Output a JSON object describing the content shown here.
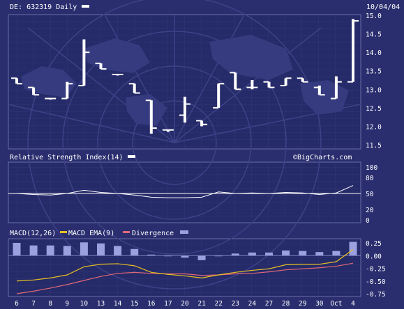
{
  "chart_data": [
    {
      "type": "ohlc",
      "title": "DE: 632319 Daily",
      "date": "10/04/04",
      "xlabels": [
        "6",
        "7",
        "8",
        "9",
        "10",
        "13",
        "14",
        "15",
        "16",
        "17",
        "20",
        "21",
        "22",
        "23",
        "24",
        "27",
        "28",
        "29",
        "30",
        "Oct",
        "4"
      ],
      "ylim": [
        11.5,
        15.0
      ],
      "yticks": [
        "15.0",
        "14.5",
        "14.0",
        "13.5",
        "13.0",
        "12.5",
        "12.0",
        "11.5"
      ],
      "bars": [
        {
          "open": 13.3,
          "high": 13.3,
          "low": 13.15,
          "close": 13.15
        },
        {
          "open": 13.05,
          "high": 13.05,
          "low": 12.85,
          "close": 12.85
        },
        {
          "open": 12.75,
          "high": 12.75,
          "low": 12.75,
          "close": 12.75
        },
        {
          "open": 12.75,
          "high": 13.2,
          "low": 12.75,
          "close": 13.15
        },
        {
          "open": 13.1,
          "high": 14.35,
          "low": 13.1,
          "close": 14.0
        },
        {
          "open": 13.7,
          "high": 13.7,
          "low": 13.55,
          "close": 13.55
        },
        {
          "open": 13.4,
          "high": 13.4,
          "low": 13.4,
          "close": 13.4
        },
        {
          "open": 13.15,
          "high": 13.15,
          "low": 12.9,
          "close": 12.9
        },
        {
          "open": 12.7,
          "high": 12.7,
          "low": 11.8,
          "close": 11.95
        },
        {
          "open": 11.9,
          "high": 11.9,
          "low": 11.85,
          "close": 11.9
        },
        {
          "open": 12.3,
          "high": 12.8,
          "low": 12.1,
          "close": 12.6
        },
        {
          "open": 12.15,
          "high": 12.15,
          "low": 12.0,
          "close": 12.05
        },
        {
          "open": 12.5,
          "high": 13.15,
          "low": 12.5,
          "close": 13.15
        },
        {
          "open": 13.45,
          "high": 13.45,
          "low": 13.0,
          "close": 13.0
        },
        {
          "open": 13.05,
          "high": 13.25,
          "low": 13.0,
          "close": 13.05
        },
        {
          "open": 13.2,
          "high": 13.2,
          "low": 13.05,
          "close": 13.05
        },
        {
          "open": 13.1,
          "high": 13.3,
          "low": 13.1,
          "close": 13.3
        },
        {
          "open": 13.3,
          "high": 13.3,
          "low": 13.2,
          "close": 13.2
        },
        {
          "open": 13.05,
          "high": 13.1,
          "low": 12.85,
          "close": 12.85
        },
        {
          "open": 12.75,
          "high": 13.35,
          "low": 12.75,
          "close": 13.2
        },
        {
          "open": 13.2,
          "high": 14.9,
          "low": 13.2,
          "close": 14.85
        }
      ]
    },
    {
      "type": "line",
      "title": "Relative Strength Index(14)",
      "watermark": "©BigCharts.com",
      "ylim": [
        0,
        100
      ],
      "yticks": [
        "100",
        "80",
        "50",
        "20",
        "0"
      ],
      "reference_line": 50,
      "series": [
        {
          "values": [
            50,
            48,
            47,
            50,
            56,
            52,
            50,
            47,
            43,
            42,
            42,
            43,
            53,
            50,
            51,
            50,
            52,
            51,
            48,
            51,
            65
          ]
        }
      ]
    },
    {
      "type": "line",
      "title": "MACD(12,26)",
      "legend": [
        "MACD(12,26)",
        "MACD EMA(9)",
        "Divergence"
      ],
      "colors": {
        "macd": "#e8c020",
        "ema": "#e06878",
        "divergence": "#9aa0e0"
      },
      "ylim": [
        -0.75,
        0.25
      ],
      "yticks": [
        "0.25",
        "0.00",
        "-0.25",
        "-0.50",
        "-0.75"
      ],
      "series": [
        {
          "name": "MACD(12,26)",
          "values": [
            -0.5,
            -0.48,
            -0.44,
            -0.38,
            -0.22,
            -0.17,
            -0.16,
            -0.2,
            -0.33,
            -0.37,
            -0.4,
            -0.44,
            -0.38,
            -0.33,
            -0.29,
            -0.26,
            -0.18,
            -0.17,
            -0.17,
            -0.12,
            0.12
          ]
        },
        {
          "name": "MACD EMA(9)",
          "values": [
            -0.75,
            -0.7,
            -0.64,
            -0.57,
            -0.49,
            -0.41,
            -0.35,
            -0.33,
            -0.35,
            -0.36,
            -0.36,
            -0.39,
            -0.38,
            -0.36,
            -0.35,
            -0.32,
            -0.28,
            -0.26,
            -0.24,
            -0.21,
            -0.15
          ]
        },
        {
          "name": "Divergence",
          "values": [
            0.25,
            0.2,
            0.2,
            0.19,
            0.26,
            0.24,
            0.19,
            0.13,
            0.02,
            -0.01,
            -0.04,
            -0.09,
            0.0,
            0.04,
            0.06,
            0.06,
            0.1,
            0.09,
            0.07,
            0.09,
            0.27
          ]
        }
      ]
    }
  ]
}
